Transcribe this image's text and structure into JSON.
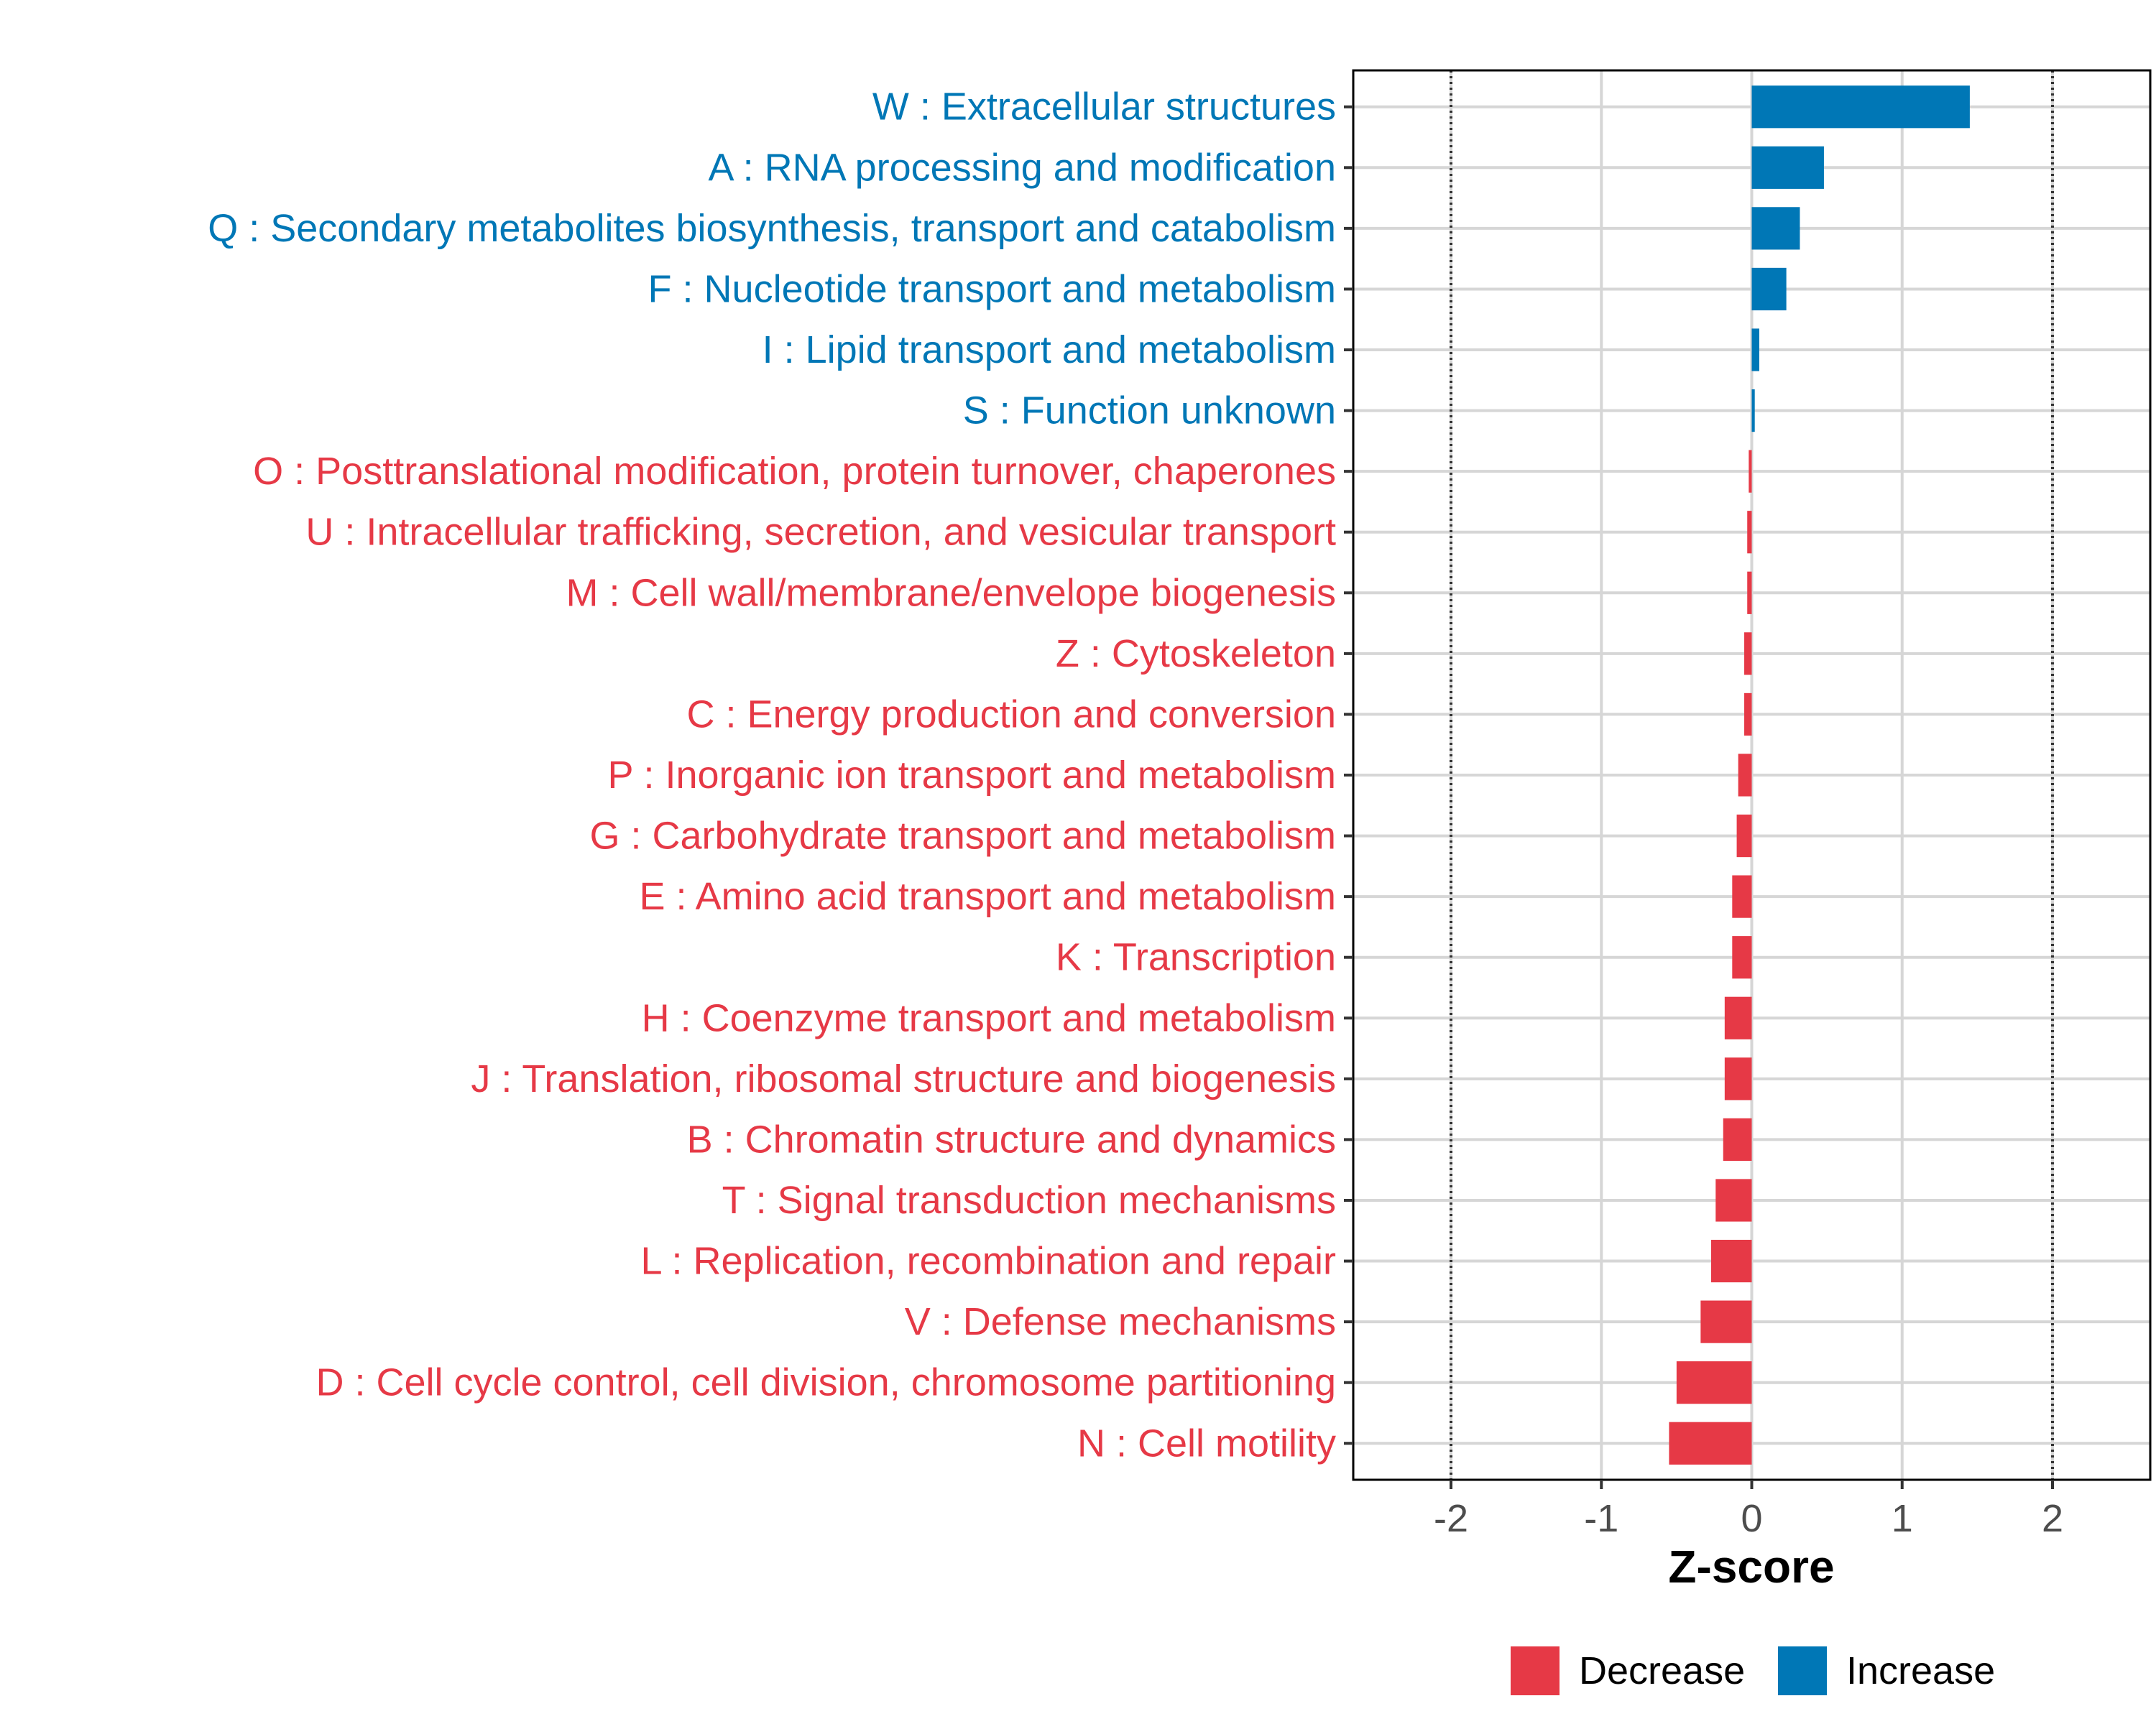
{
  "chart_data": {
    "type": "bar",
    "orientation": "horizontal",
    "title": "",
    "xlabel": "Z-score",
    "ylabel": "",
    "xlim": [
      -2.65,
      2.65
    ],
    "x_ticks": [
      -2,
      -1,
      0,
      1,
      2
    ],
    "x_tick_labels": [
      "-2",
      "-1",
      "0",
      "1",
      "2"
    ],
    "reference_lines": [
      -2,
      2
    ],
    "grid": true,
    "legend_position": "bottom",
    "colors": {
      "Decrease": "#e63946",
      "Increase": "#0077b6"
    },
    "legend": [
      {
        "label": "Decrease",
        "color": "#e63946"
      },
      {
        "label": "Increase",
        "color": "#0077b6"
      }
    ],
    "categories": [
      "W : Extracellular structures",
      "A : RNA processing and modification",
      "Q : Secondary metabolites biosynthesis, transport and catabolism",
      "F : Nucleotide transport and metabolism",
      "I : Lipid transport and metabolism",
      "S : Function unknown",
      "O : Posttranslational modification, protein turnover, chaperones",
      "U : Intracellular trafficking, secretion, and vesicular transport",
      "M : Cell wall/membrane/envelope biogenesis",
      "Z : Cytoskeleton",
      "C : Energy production and conversion",
      "P : Inorganic ion transport and metabolism",
      "G : Carbohydrate transport and metabolism",
      "E : Amino acid transport and metabolism",
      "K : Transcription",
      "H : Coenzyme transport and metabolism",
      "J : Translation, ribosomal structure and biogenesis",
      "B : Chromatin structure and dynamics",
      "T : Signal transduction mechanisms",
      "L : Replication, recombination and repair",
      "V : Defense mechanisms",
      "D : Cell cycle control, cell division, chromosome partitioning",
      "N : Cell motility"
    ],
    "values": [
      1.45,
      0.48,
      0.32,
      0.23,
      0.05,
      0.02,
      -0.02,
      -0.03,
      -0.03,
      -0.05,
      -0.05,
      -0.09,
      -0.1,
      -0.13,
      -0.13,
      -0.18,
      -0.18,
      -0.19,
      -0.24,
      -0.27,
      -0.34,
      -0.5,
      -0.55
    ],
    "groups": [
      "Increase",
      "Increase",
      "Increase",
      "Increase",
      "Increase",
      "Increase",
      "Decrease",
      "Decrease",
      "Decrease",
      "Decrease",
      "Decrease",
      "Decrease",
      "Decrease",
      "Decrease",
      "Decrease",
      "Decrease",
      "Decrease",
      "Decrease",
      "Decrease",
      "Decrease",
      "Decrease",
      "Decrease",
      "Decrease"
    ]
  }
}
